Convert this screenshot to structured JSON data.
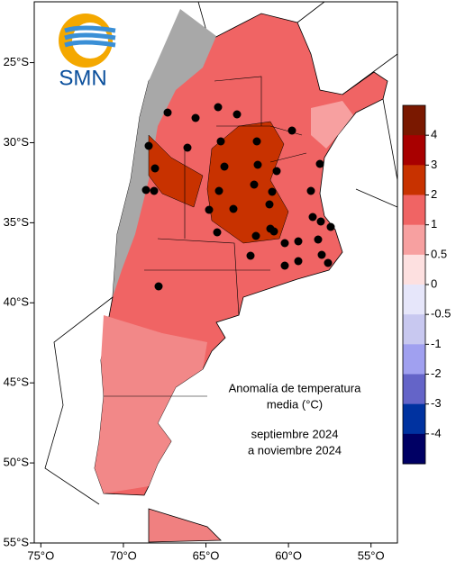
{
  "map": {
    "logo": "SMN",
    "lon_lim": [
      -75.4,
      -53.4
    ],
    "lat_lim": [
      -55,
      -21.2
    ],
    "lat_ticks": [
      {
        "value": -25,
        "label": "25°S"
      },
      {
        "value": -30,
        "label": "30°S"
      },
      {
        "value": -35,
        "label": "35°S"
      },
      {
        "value": -40,
        "label": "40°S"
      },
      {
        "value": -45,
        "label": "45°S"
      },
      {
        "value": -50,
        "label": "50°S"
      },
      {
        "value": -55,
        "label": "55°S"
      }
    ],
    "lon_ticks": [
      {
        "value": -75,
        "label": "75°O"
      },
      {
        "value": -70,
        "label": "70°O"
      },
      {
        "value": -65,
        "label": "65°O"
      },
      {
        "value": -60,
        "label": "60°O"
      },
      {
        "value": -55,
        "label": "55°O"
      }
    ],
    "annotation": [
      "Anomalía de temperatura",
      "media (°C)",
      "septiembre 2024",
      "a noviembre 2024"
    ],
    "legend": {
      "ticks": [
        4,
        3,
        2,
        1,
        0.5,
        0,
        -0.5,
        -1,
        -2,
        -3,
        -4
      ],
      "colors": [
        "#7a1800",
        "#a80000",
        "#c83200",
        "#f06464",
        "#f7a0a0",
        "#fde0e0",
        "#e6e6fa",
        "#c8c8f0",
        "#a0a0f0",
        "#6464c8",
        "#0032a0",
        "#000064"
      ]
    }
  }
}
